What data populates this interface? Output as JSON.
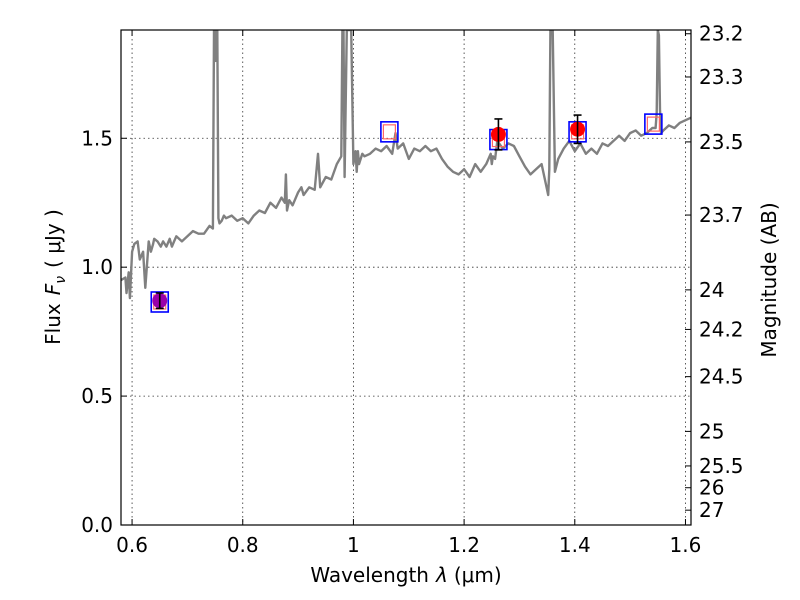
{
  "chart_data": {
    "type": "line",
    "xlabel": "Wavelength",
    "xlabel_symbol": "λ",
    "xlabel_unit": "(μm)",
    "ylabel": "Flux",
    "ylabel_symbol": "F",
    "ylabel_subscript": "ν",
    "ylabel_unit": "( μJy )",
    "y2label": "Magnitude (AB)",
    "xlim": [
      0.58,
      1.61
    ],
    "ylim": [
      0.0,
      1.92
    ],
    "x_ticks": [
      0.6,
      0.8,
      1.0,
      1.2,
      1.4,
      1.6
    ],
    "x_tick_labels": [
      "0.6",
      "0.8",
      "1",
      "1.2",
      "1.4",
      "1.6"
    ],
    "y_ticks": [
      0.0,
      0.5,
      1.0,
      1.5
    ],
    "y_tick_labels": [
      "0.0",
      "0.5",
      "1.0",
      "1.5"
    ],
    "y2_ticks": [
      {
        "label": "23.2",
        "mag": 23.2
      },
      {
        "label": "23.3",
        "mag": 23.3
      },
      {
        "label": "23.5",
        "mag": 23.47
      },
      {
        "label": "23.7",
        "mag": 23.7
      },
      {
        "label": "24",
        "mag": 24.0
      },
      {
        "label": "24.2",
        "mag": 24.2
      },
      {
        "label": "24.5",
        "mag": 24.5
      },
      {
        "label": "25",
        "mag": 25.0
      },
      {
        "label": "25.5",
        "mag": 25.5
      },
      {
        "label": "26",
        "mag": 26.0
      },
      {
        "label": "27",
        "mag": 27.0
      }
    ],
    "grid": true,
    "colors": {
      "spectrum": "#808080",
      "photometry": "#ff0000",
      "first_point": "#9900aa",
      "model_box": "#0000ff",
      "model_inner": "#ff6666",
      "errorbar": "#000000"
    },
    "series": [
      {
        "kind": "spectrum",
        "x": [
          0.58,
          0.588,
          0.59,
          0.594,
          0.596,
          0.6,
          0.604,
          0.61,
          0.614,
          0.62,
          0.624,
          0.63,
          0.634,
          0.638,
          0.64,
          0.646,
          0.652,
          0.656,
          0.662,
          0.668,
          0.672,
          0.676,
          0.68,
          0.69,
          0.7,
          0.71,
          0.72,
          0.73,
          0.74,
          0.746,
          0.748,
          0.749,
          0.751,
          0.753,
          0.754,
          0.756,
          0.758,
          0.762,
          0.766,
          0.77,
          0.78,
          0.79,
          0.8,
          0.81,
          0.82,
          0.83,
          0.84,
          0.85,
          0.86,
          0.87,
          0.876,
          0.878,
          0.88,
          0.884,
          0.89,
          0.9,
          0.906,
          0.91,
          0.92,
          0.93,
          0.936,
          0.94,
          0.95,
          0.96,
          0.97,
          0.978,
          0.98,
          0.982,
          0.984,
          0.988,
          0.992,
          0.996,
          1.0,
          1.004,
          1.006,
          1.008,
          1.01,
          1.016,
          1.02,
          1.03,
          1.04,
          1.05,
          1.06,
          1.07,
          1.076,
          1.08,
          1.09,
          1.1,
          1.11,
          1.12,
          1.13,
          1.14,
          1.15,
          1.16,
          1.17,
          1.18,
          1.19,
          1.2,
          1.21,
          1.22,
          1.23,
          1.24,
          1.248,
          1.25,
          1.252,
          1.256,
          1.26,
          1.27,
          1.28,
          1.29,
          1.3,
          1.31,
          1.32,
          1.33,
          1.34,
          1.346,
          1.35,
          1.352,
          1.354,
          1.356,
          1.36,
          1.364,
          1.37,
          1.38,
          1.39,
          1.4,
          1.41,
          1.42,
          1.43,
          1.44,
          1.45,
          1.46,
          1.47,
          1.48,
          1.49,
          1.5,
          1.51,
          1.52,
          1.53,
          1.54,
          1.546,
          1.548,
          1.55,
          1.552,
          1.554,
          1.556,
          1.56,
          1.57,
          1.58,
          1.59,
          1.6,
          1.61
        ],
        "y": [
          0.95,
          0.96,
          0.9,
          0.98,
          0.88,
          1.06,
          1.09,
          1.1,
          1.03,
          1.06,
          0.92,
          1.1,
          1.06,
          1.09,
          1.11,
          1.1,
          1.08,
          1.1,
          1.08,
          1.11,
          1.08,
          1.1,
          1.12,
          1.1,
          1.12,
          1.14,
          1.13,
          1.13,
          1.16,
          1.15,
          1.92,
          1.92,
          1.8,
          1.92,
          1.92,
          1.19,
          1.17,
          1.18,
          1.2,
          1.19,
          1.2,
          1.18,
          1.19,
          1.17,
          1.2,
          1.22,
          1.21,
          1.25,
          1.23,
          1.27,
          1.25,
          1.36,
          1.22,
          1.26,
          1.24,
          1.29,
          1.31,
          1.28,
          1.31,
          1.3,
          1.44,
          1.31,
          1.35,
          1.34,
          1.4,
          1.43,
          1.92,
          1.92,
          1.35,
          1.92,
          1.92,
          1.92,
          1.4,
          1.45,
          1.37,
          1.45,
          1.4,
          1.44,
          1.43,
          1.44,
          1.46,
          1.45,
          1.47,
          1.44,
          1.52,
          1.46,
          1.48,
          1.42,
          1.46,
          1.45,
          1.47,
          1.45,
          1.46,
          1.42,
          1.39,
          1.37,
          1.36,
          1.38,
          1.35,
          1.4,
          1.37,
          1.4,
          1.44,
          1.4,
          1.43,
          1.42,
          1.49,
          1.46,
          1.48,
          1.47,
          1.43,
          1.39,
          1.36,
          1.38,
          1.4,
          1.34,
          1.3,
          1.28,
          1.38,
          1.92,
          1.92,
          1.37,
          1.42,
          1.46,
          1.49,
          1.45,
          1.48,
          1.44,
          1.46,
          1.44,
          1.48,
          1.47,
          1.49,
          1.51,
          1.49,
          1.52,
          1.53,
          1.51,
          1.52,
          1.54,
          1.54,
          1.6,
          1.92,
          1.9,
          1.61,
          1.52,
          1.53,
          1.55,
          1.54,
          1.56,
          1.57,
          1.58
        ]
      },
      {
        "kind": "model",
        "x": [
          0.65,
          1.065,
          1.262,
          1.405,
          1.542
        ],
        "y": [
          0.865,
          1.525,
          1.495,
          1.525,
          1.555
        ]
      },
      {
        "kind": "photometry",
        "x": [
          0.65,
          1.262,
          1.405
        ],
        "y": [
          0.87,
          1.515,
          1.535
        ],
        "yerr": [
          0.03,
          0.06,
          0.055
        ]
      }
    ]
  }
}
